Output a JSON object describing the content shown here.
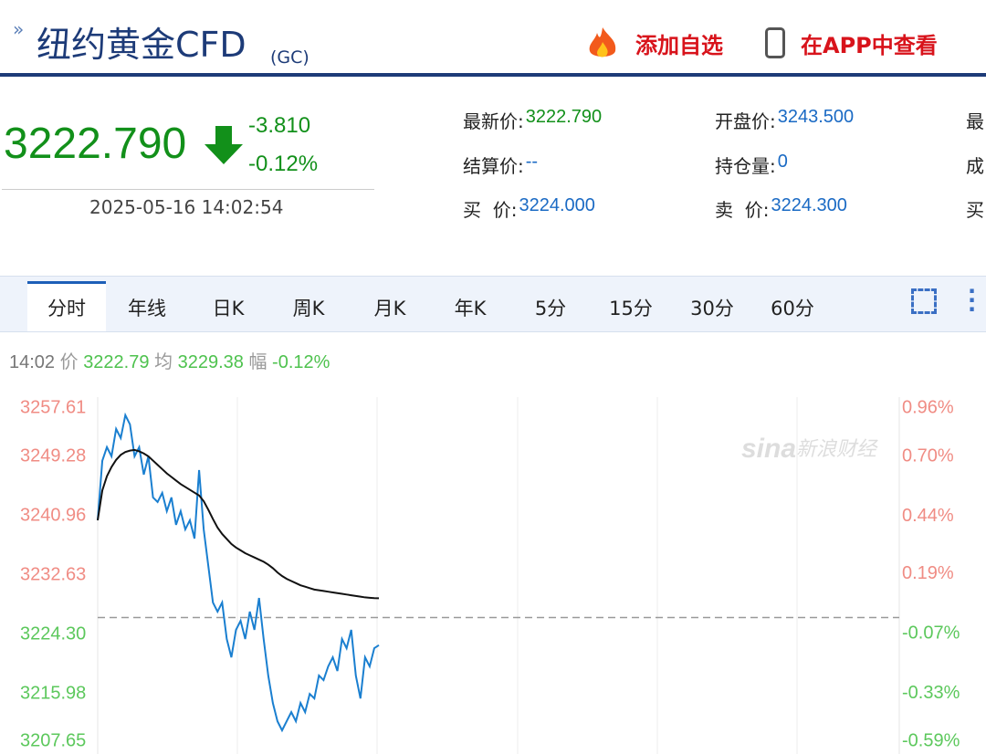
{
  "header": {
    "title": "纽约黄金CFD",
    "code": "(GC)",
    "actions": [
      "添加自选",
      "在APP中查看"
    ]
  },
  "quote": {
    "price": "3222.790",
    "change": "-3.810",
    "change_pct": "-0.12%",
    "time": "2025-05-16 14:02:54"
  },
  "fields": [
    [
      {
        "label": "最新价:",
        "value": "3222.790"
      },
      {
        "label": "开盘价:",
        "value": "3243.500"
      },
      {
        "label": "最"
      }
    ],
    [
      {
        "label": "结算价:",
        "value": "--"
      },
      {
        "label": "持仓量:",
        "value": "0"
      },
      {
        "label": "成"
      }
    ],
    [
      {
        "label": "买  价:",
        "value": "3224.000"
      },
      {
        "label": "卖  价:",
        "value": "3224.300"
      },
      {
        "label": "买"
      }
    ]
  ],
  "tabs": [
    "分时",
    "年线",
    "日K",
    "周K",
    "月K",
    "年K",
    "5分",
    "15分",
    "30分",
    "60分"
  ],
  "info": {
    "time": "14:02",
    "price_label": "价",
    "price": "3222.79",
    "avg_label": "均",
    "avg": "3229.38",
    "range_label": "幅",
    "range": "-0.12%"
  },
  "chart_data": {
    "type": "line",
    "watermark": [
      "sina",
      "新浪财经"
    ],
    "ylim": [
      3207.65,
      3257.61
    ],
    "yticks": [
      3257.61,
      3249.28,
      3240.96,
      3232.63,
      {
        "value": 3224.3,
        "label": "3224.30"
      },
      3215.98,
      3207.65
    ],
    "y2lim": [
      -0.59,
      0.96
    ],
    "y2ticks": [
      {
        "value": 0.96,
        "label": "0.96%"
      },
      {
        "value": 0.7,
        "label": "0.70%"
      },
      {
        "value": 0.44,
        "label": "0.44%"
      },
      {
        "value": 0.19,
        "label": "0.19%"
      },
      {
        "value": -0.07,
        "label": "-0.07%"
      },
      {
        "value": -0.33,
        "label": "-0.33%"
      },
      {
        "value": -0.59,
        "label": "-0.59%"
      }
    ],
    "series": [
      {
        "color": "#1a7fd0",
        "values": [
          3240.32,
          3248.66,
          3250.58,
          3249.3,
          3253.14,
          3251.86,
          3255.07,
          3253.78,
          3249.3,
          3250.58,
          3246.73,
          3249.3,
          3243.53,
          3242.89,
          3244.17,
          3241.6,
          3243.53,
          3239.68,
          3241.6,
          3239.04,
          3240.32,
          3237.76,
          3247.37,
          3239.04,
          3233.91,
          3228.78,
          3227.5,
          3228.78,
          3223.66,
          3221.09,
          3224.94,
          3226.22,
          3223.66,
          3227.5,
          3224.94,
          3229.42,
          3223.66,
          3218.53,
          3214.68,
          3212.12,
          3210.84,
          3212.12,
          3213.4,
          3212.12,
          3214.68,
          3213.4,
          3215.96,
          3215.32,
          3218.53,
          3217.89,
          3219.81,
          3221.09,
          3219.17,
          3223.66,
          3222.37,
          3224.94,
          3218.53,
          3215.32,
          3221.09,
          3219.81,
          3222.37,
          3222.79
        ]
      },
      {
        "color": "#111111",
        "values": [
          3240.32,
          3244.5,
          3246.5,
          3247.8,
          3248.8,
          3249.5,
          3249.9,
          3250.1,
          3250.2,
          3250.0,
          3249.7,
          3249.3,
          3248.7,
          3248.1,
          3247.5,
          3246.9,
          3246.4,
          3245.9,
          3245.4,
          3245.0,
          3244.6,
          3244.2,
          3243.8,
          3243.0,
          3241.8,
          3240.5,
          3239.3,
          3238.4,
          3237.7,
          3237.0,
          3236.5,
          3236.1,
          3235.7,
          3235.4,
          3235.1,
          3234.8,
          3234.5,
          3234.1,
          3233.6,
          3233.0,
          3232.5,
          3232.1,
          3231.8,
          3231.5,
          3231.2,
          3231.0,
          3230.8,
          3230.6,
          3230.5,
          3230.4,
          3230.3,
          3230.2,
          3230.1,
          3230.0,
          3229.9,
          3229.8,
          3229.7,
          3229.6,
          3229.5,
          3229.45,
          3229.4,
          3229.38
        ]
      }
    ]
  }
}
